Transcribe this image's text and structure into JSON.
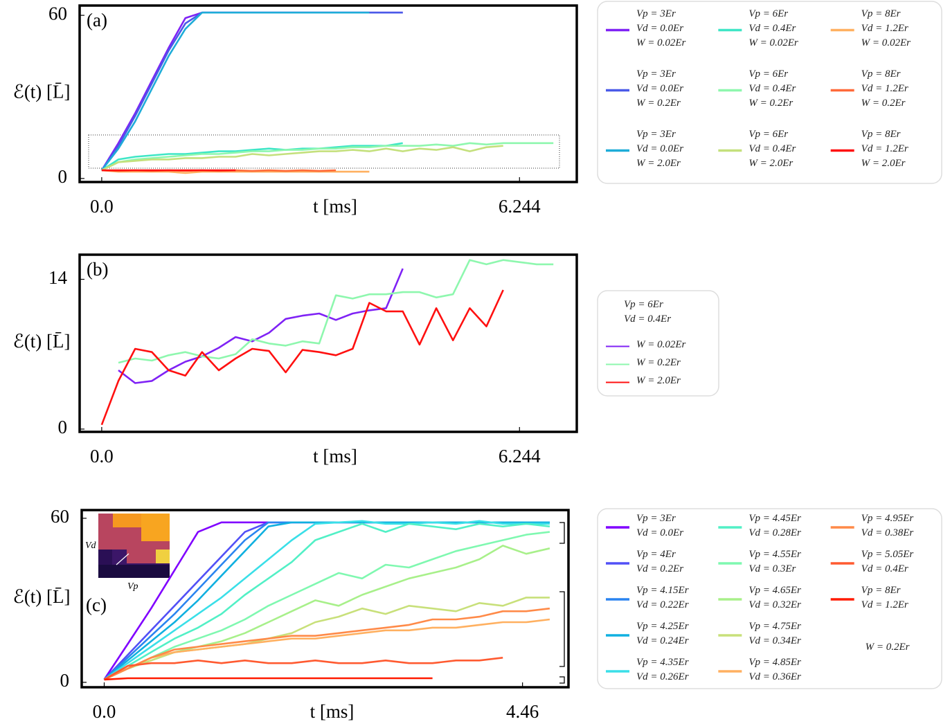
{
  "chart_data": [
    {
      "type": "line",
      "title": "(a)",
      "ylabel": "ℰ(t) [L̄]",
      "xlabel": "t [ms]",
      "xlim": [
        -0.33,
        7.1
      ],
      "ylim": [
        -1.3,
        63.6
      ],
      "xticks": [
        {
          "value": 0,
          "label": "0.0"
        },
        6.244
      ],
      "yticks": [
        0,
        60
      ],
      "x": [
        0,
        0.25,
        0.5,
        0.75,
        1,
        1.25,
        1.5,
        1.75,
        2,
        2.25,
        2.5,
        2.75,
        3,
        3.25,
        3.5,
        3.75,
        4,
        4.25,
        4.5,
        4.75,
        5,
        5.25,
        5.5,
        5.75,
        6,
        6.25,
        6.5,
        6.75
      ],
      "series": [
        {
          "name": "Vp = 3Er\nVd = 0.0Er\nW = 0.02Er",
          "color": "#7f22f5",
          "values": [
            3,
            13,
            24,
            36,
            48,
            59,
            61,
            61,
            61,
            61,
            61,
            61,
            61,
            61,
            61,
            61,
            61,
            61,
            61,
            null,
            null,
            null,
            null,
            null,
            null,
            null,
            null,
            null
          ]
        },
        {
          "name": "Vp = 3Er\nVd = 0.0Er\nW = 0.2Er",
          "color": "#4a5ae8",
          "values": [
            3,
            12,
            23,
            35,
            47,
            57,
            61,
            61,
            61,
            61,
            61,
            61,
            61,
            61,
            61,
            61,
            61,
            61,
            61,
            null,
            null,
            null,
            null,
            null,
            null,
            null,
            null,
            null
          ]
        },
        {
          "name": "Vp = 3Er\nVd = 0.0Er\nW = 2.0Er",
          "color": "#1eacd8",
          "values": [
            3,
            11,
            21,
            33,
            45,
            55,
            61,
            61,
            61,
            61,
            61,
            61,
            61,
            61,
            61,
            61,
            61,
            null,
            null,
            null,
            null,
            null,
            null,
            null,
            null,
            null,
            null,
            null
          ]
        },
        {
          "name": "Vp = 6Er\nVd = 0.4Er\nW = 0.02Er",
          "color": "#3ee6c6",
          "values": [
            3,
            7,
            8,
            8.5,
            9,
            9,
            9.5,
            10,
            10,
            10.5,
            11,
            10.5,
            11,
            11,
            11.5,
            12,
            12,
            12,
            13,
            null,
            null,
            null,
            null,
            null,
            null,
            null,
            null,
            null
          ]
        },
        {
          "name": "Vp = 6Er\nVd = 0.4Er\nW = 0.2Er",
          "color": "#8ef7ae",
          "values": [
            3,
            6,
            7,
            7.5,
            8,
            8.5,
            9,
            9,
            9.5,
            10,
            10,
            10.5,
            10.5,
            11,
            11,
            11.5,
            11.5,
            12,
            12,
            12,
            12.5,
            12,
            13,
            12.5,
            13,
            13,
            13,
            13
          ]
        },
        {
          "name": "Vp = 6Er\nVd = 0.4Er\nW = 2.0Er",
          "color": "#c4e07c",
          "values": [
            3,
            6,
            6.5,
            7,
            7,
            7.5,
            7.5,
            8,
            8,
            9,
            8.5,
            9,
            9.5,
            10,
            10,
            10.5,
            10,
            11,
            10,
            11,
            10.5,
            11.5,
            10,
            11.5,
            12,
            null,
            null,
            null
          ]
        },
        {
          "name": "Vp = 8Er\nVd = 1.2Er\nW = 0.02Er",
          "color": "#ffb060",
          "values": [
            3,
            2.5,
            2.5,
            2.5,
            2.5,
            2,
            2.5,
            2.5,
            2.5,
            2.5,
            2.5,
            2.5,
            2.5,
            2.5,
            2.5,
            2.5,
            2.5,
            null,
            null,
            null,
            null,
            null,
            null,
            null,
            null,
            null,
            null,
            null
          ]
        },
        {
          "name": "Vp = 8Er\nVd = 1.2Er\nW = 0.2Er",
          "color": "#ff6a3a",
          "values": [
            3,
            2.8,
            3,
            2.8,
            3,
            2.8,
            3,
            2.8,
            3,
            2.8,
            3,
            2.8,
            3,
            2.8,
            3,
            null,
            null,
            null,
            null,
            null,
            null,
            null,
            null,
            null,
            null,
            null,
            null,
            null
          ]
        },
        {
          "name": "Vp = 8Er\nVd = 1.2Er\nW = 2.0Er",
          "color": "#ff1010",
          "values": [
            3,
            3,
            3,
            3,
            3,
            3,
            3,
            3,
            3,
            null,
            null,
            null,
            null,
            null,
            null,
            null,
            null,
            null,
            null,
            null,
            null,
            null,
            null,
            null,
            null,
            null,
            null,
            null
          ]
        }
      ]
    },
    {
      "type": "line",
      "title": "(b)",
      "ylabel": "ℰ(t) [L̄]",
      "xlabel": "t [ms]",
      "xlim": [
        -0.33,
        7.1
      ],
      "ylim": [
        -0.26,
        16.3
      ],
      "xticks": [
        {
          "value": 0,
          "label": "0.0"
        },
        6.244
      ],
      "yticks": [
        0,
        14
      ],
      "legend_title": "Vp = 6Er\nVd = 0.4Er",
      "x": [
        0,
        0.25,
        0.5,
        0.75,
        1,
        1.25,
        1.5,
        1.75,
        2,
        2.25,
        2.5,
        2.75,
        3,
        3.25,
        3.5,
        3.75,
        4,
        4.25,
        4.5,
        4.75,
        5,
        5.25,
        5.5,
        5.75,
        6,
        6.25,
        6.5,
        6.75
      ],
      "series": [
        {
          "name": "W = 0.02Er",
          "color": "#7f22f5",
          "values": [
            null,
            5.5,
            4.3,
            4.5,
            5.5,
            6.3,
            6.8,
            7.6,
            8.6,
            8.2,
            9.0,
            10.3,
            10.6,
            10.8,
            10.2,
            10.8,
            11.1,
            11.3,
            15.0,
            null,
            null,
            null,
            null,
            null,
            null,
            null,
            null,
            null
          ]
        },
        {
          "name": "W = 0.2Er",
          "color": "#8ef7ae",
          "values": [
            null,
            6.2,
            6.6,
            6.4,
            6.9,
            7.2,
            6.8,
            6.6,
            7.0,
            8.4,
            8.0,
            7.8,
            8.2,
            8.0,
            12.5,
            12.2,
            12.6,
            12.6,
            12.8,
            12.8,
            12.3,
            12.6,
            15.8,
            15.4,
            15.8,
            15.6,
            15.4,
            15.4
          ]
        },
        {
          "name": "W = 2.0Er",
          "color": "#ff1010",
          "values": [
            0.4,
            4.5,
            7.5,
            7.2,
            5.5,
            5.0,
            7.2,
            5.5,
            6.6,
            7.5,
            7.3,
            5.3,
            7.4,
            7.2,
            6.9,
            7.5,
            11.8,
            11.0,
            11.0,
            7.9,
            11.3,
            8.3,
            11.3,
            9.6,
            13.0,
            null,
            null,
            null
          ]
        }
      ]
    },
    {
      "type": "line",
      "title": "(c)",
      "ylabel": "ℰ(t) [L̄]",
      "xlabel": "t [ms]",
      "xlim": [
        -0.24,
        4.95
      ],
      "ylim": [
        -1.8,
        63.0
      ],
      "xticks": [
        {
          "value": 0,
          "label": "0.0"
        },
        4.46
      ],
      "yticks": [
        0,
        60
      ],
      "legend_note": "W = 0.2Er",
      "inset_labels": [
        "Vd",
        "Vp"
      ],
      "x": [
        0,
        0.25,
        0.5,
        0.75,
        1,
        1.25,
        1.5,
        1.75,
        2,
        2.25,
        2.5,
        2.75,
        3,
        3.25,
        3.5,
        3.75,
        4,
        4.25,
        4.5,
        4.75
      ],
      "series": [
        {
          "name": "Vp = 3Er\nVd = 0.0Er",
          "color": "#8000ff",
          "values": [
            1,
            14,
            27,
            41,
            55,
            58.5,
            58.5,
            58.5,
            58.5,
            58.5,
            58.5,
            58.5,
            58.5,
            58.5,
            58.5,
            58.5,
            58.5,
            58.5,
            58.5,
            58.5
          ]
        },
        {
          "name": "Vp = 4Er\nVd = 0.2Er",
          "color": "#5250f6",
          "values": [
            1,
            10,
            19,
            28,
            37,
            46,
            55,
            58.5,
            58.5,
            58.5,
            58.5,
            58.5,
            58.5,
            58.5,
            58.5,
            58.5,
            58.5,
            58.5,
            58.5,
            58.5
          ]
        },
        {
          "name": "Vp = 4.15Er\nVd = 0.22Er",
          "color": "#2a84f0",
          "values": [
            1,
            9,
            17,
            25,
            34,
            43,
            52,
            58.5,
            58.5,
            58.5,
            58.5,
            58.5,
            58.5,
            58.5,
            58.5,
            58.5,
            58.5,
            58.5,
            58.5,
            58.5
          ]
        },
        {
          "name": "Vp = 4.25Er\nVd = 0.24Er",
          "color": "#10b0e0",
          "values": [
            1,
            8,
            15,
            22,
            30,
            39,
            48,
            57,
            58.5,
            58.5,
            58.5,
            58.5,
            58.5,
            58.5,
            58.5,
            58.5,
            58.5,
            58.5,
            58.5,
            58.5
          ]
        },
        {
          "name": "Vp = 4.35Er\nVd = 0.26Er",
          "color": "#3adfe8",
          "values": [
            1,
            7,
            13,
            19,
            25,
            31,
            38,
            45,
            52,
            58,
            58.5,
            59,
            58,
            58,
            58.5,
            58,
            59,
            58,
            58,
            58
          ]
        },
        {
          "name": "Vp = 4.45Er\nVd = 0.28Er",
          "color": "#52f0c6",
          "values": [
            1,
            6,
            11,
            16,
            20,
            25,
            32,
            38,
            44,
            52,
            55,
            58,
            55,
            58,
            57,
            56,
            58,
            57,
            58,
            57
          ]
        },
        {
          "name": "Vp = 4.55Er\nVd = 0.3Er",
          "color": "#7ff8b0",
          "values": [
            1,
            5,
            9,
            13,
            16,
            19,
            23,
            28,
            32,
            36,
            40,
            38,
            43,
            42,
            45,
            48,
            50,
            52,
            54,
            55
          ]
        },
        {
          "name": "Vp = 4.65Er\nVd = 0.32Er",
          "color": "#a8f08a",
          "values": [
            1,
            5,
            8,
            11,
            13,
            15,
            18,
            22,
            26,
            30,
            28,
            32,
            35,
            38,
            40,
            42,
            45,
            50,
            47,
            49
          ]
        },
        {
          "name": "Vp = 4.75Er\nVd = 0.34Er",
          "color": "#c8e07a",
          "values": [
            1,
            5,
            8,
            11,
            12,
            13,
            14,
            16,
            18,
            22,
            24,
            27,
            25,
            28,
            27,
            26,
            29,
            28,
            31,
            31
          ]
        },
        {
          "name": "Vp = 4.85Er\nVd = 0.36Er",
          "color": "#ffb060",
          "values": [
            1,
            5,
            9,
            11,
            12,
            13,
            14,
            15,
            16,
            16,
            17,
            18,
            19,
            19,
            20,
            20,
            21,
            22,
            22,
            23
          ]
        },
        {
          "name": "Vp = 4.95Er\nVd = 0.38Er",
          "color": "#ff8a48",
          "values": [
            1,
            5,
            9,
            12,
            13,
            14,
            15,
            16,
            17,
            17,
            18,
            19,
            20,
            21,
            23,
            23,
            24,
            26,
            26,
            27
          ]
        },
        {
          "name": "Vp = 5.05Er\nVd = 0.4Er",
          "color": "#ff5a30",
          "values": [
            1,
            6,
            7,
            7,
            8,
            7,
            8,
            7,
            7,
            8,
            7,
            7,
            8,
            7,
            7,
            8,
            8,
            9,
            null,
            null
          ]
        },
        {
          "name": "Vp = 8Er\nVd = 1.2Er",
          "color": "#ff1a00",
          "values": [
            1,
            1.5,
            1.5,
            1.5,
            1.5,
            1.5,
            1.5,
            1.5,
            1.5,
            1.5,
            1.5,
            1.5,
            1.5,
            1.5,
            1.5,
            null,
            null,
            null,
            null,
            null
          ]
        }
      ]
    }
  ]
}
